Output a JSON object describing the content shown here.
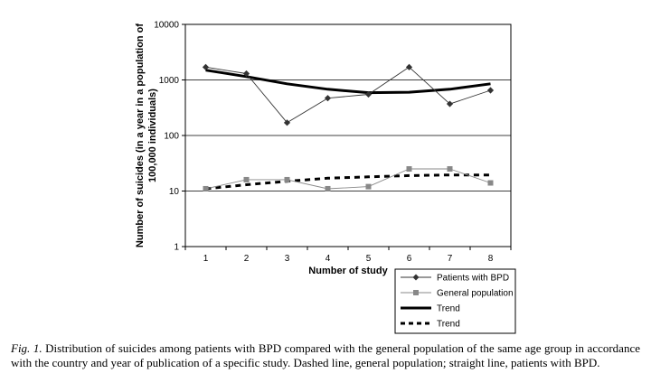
{
  "chart_data": {
    "type": "line",
    "xlabel": "Number of study",
    "ylabel": "Number of suicides (in a year in a population of 100,000 individuals)",
    "ylabel_lines": [
      "Number of suicides (in a year in a population of",
      "100,000 individuals)"
    ],
    "y_scale": "log",
    "ylim": [
      1,
      10000
    ],
    "y_ticks": [
      "1",
      "10",
      "100",
      "1000",
      "10000"
    ],
    "x_ticks": [
      "1",
      "2",
      "3",
      "4",
      "5",
      "6",
      "7",
      "8"
    ],
    "x": [
      1,
      2,
      3,
      4,
      5,
      6,
      7,
      8
    ],
    "grid": "horizontal",
    "legend_position": "bottom-right",
    "series": [
      {
        "name": "Patients with BPD",
        "style": "thin line, diamond markers",
        "color": "#333333",
        "values": [
          1700,
          1300,
          170,
          470,
          550,
          1700,
          370,
          650
        ]
      },
      {
        "name": "General population",
        "style": "thin line, square markers",
        "color": "#888888",
        "values": [
          11,
          16,
          16,
          11,
          12,
          25,
          25,
          14
        ]
      },
      {
        "name": "Trend",
        "style": "thick solid line",
        "color": "#000000",
        "values": [
          1500,
          1150,
          850,
          680,
          590,
          600,
          680,
          850
        ]
      },
      {
        "name": "Trend",
        "style": "thick dashed line",
        "color": "#000000",
        "values": [
          11,
          13,
          15,
          17,
          18,
          19,
          19.5,
          19.5
        ]
      }
    ]
  },
  "caption": {
    "label": "Fig. 1.",
    "text": " Distribution of suicides among patients with BPD compared with the general population of the same age group in accordance with the country and year of publication of a specific study. Dashed line, general population; straight line, patients with BPD."
  }
}
